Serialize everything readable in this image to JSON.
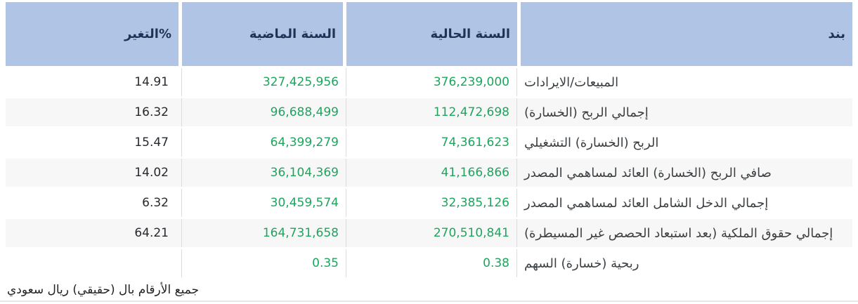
{
  "table": {
    "columns": [
      {
        "key": "item",
        "label": "بند"
      },
      {
        "key": "current_year",
        "label": "السنة الحالية"
      },
      {
        "key": "previous_year",
        "label": "السنة الماضية"
      },
      {
        "key": "change_pct",
        "label": "التغير%"
      }
    ],
    "rows": [
      {
        "item": "المبيعات/الايرادات",
        "current_year": "376,239,000",
        "previous_year": "327,425,956",
        "change_pct": "14.91"
      },
      {
        "item": "إجمالي الربح (الخسارة)",
        "current_year": "112,472,698",
        "previous_year": "96,688,499",
        "change_pct": "16.32"
      },
      {
        "item": "الربح (الخسارة) التشغيلي",
        "current_year": "74,361,623",
        "previous_year": "64,399,279",
        "change_pct": "15.47"
      },
      {
        "item": "صافي الربح (الخسارة) العائد لمساهمي المصدر",
        "current_year": "41,166,866",
        "previous_year": "36,104,369",
        "change_pct": "14.02"
      },
      {
        "item": "إجمالي الدخل الشامل العائد لمساهمي المصدر",
        "current_year": "32,385,126",
        "previous_year": "30,459,574",
        "change_pct": "6.32"
      },
      {
        "item": "إجمالي حقوق الملكية (بعد استبعاد الحصص غير المسيطرة)",
        "current_year": "270,510,841",
        "previous_year": "164,731,658",
        "change_pct": "64.21"
      },
      {
        "item": "ربحية (خسارة) السهم",
        "current_year": "0.38",
        "previous_year": "0.35",
        "change_pct": ""
      }
    ],
    "footer_note": "جميع الأرقام بال (حقيقي) ريال سعودي"
  },
  "colors": {
    "header_bg": "#b0c4e6",
    "header_text": "#1d3357",
    "value_green": "#1fa45e",
    "change_text": "#26292e",
    "item_text": "#3c4043",
    "row_alt_bg": "#f7f7f7",
    "column_border": "#dcdcdc",
    "bottom_rule": "#e7e7e7"
  }
}
